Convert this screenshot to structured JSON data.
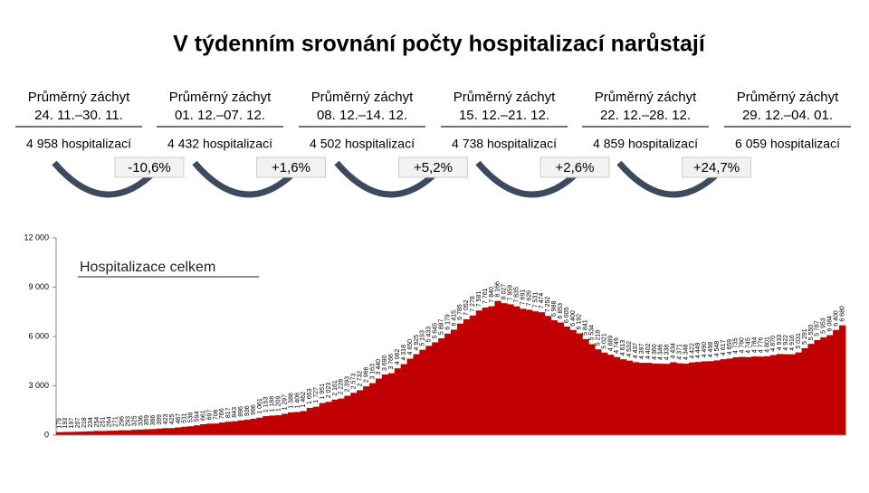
{
  "header": {
    "title": "V týdenním srovnání počty hospitalizací narůstají"
  },
  "periods": [
    {
      "label": "Průměrný záchyt",
      "dates": "24. 11.–30. 11.",
      "hospitalized": "4 958 hospitalizací"
    },
    {
      "label": "Průměrný záchyt",
      "dates": "01. 12.–07. 12.",
      "hospitalized": "4 432 hospitalizací"
    },
    {
      "label": "Průměrný záchyt",
      "dates": "08. 12.–14. 12.",
      "hospitalized": "4 502 hospitalizací"
    },
    {
      "label": "Průměrný záchyt",
      "dates": "15. 12.–21. 12.",
      "hospitalized": "4 738 hospitalizací"
    },
    {
      "label": "Průměrný záchyt",
      "dates": "22. 12.–28. 12.",
      "hospitalized": "4 859 hospitalizací"
    },
    {
      "label": "Průměrný záchyt",
      "dates": "29. 12.–04. 01.",
      "hospitalized": "6 059 hospitalizací"
    }
  ],
  "changes": [
    "-10,6%",
    "+1,6%",
    "+5,2%",
    "+2,6%",
    "+24,7%"
  ],
  "chart_data": {
    "type": "bar",
    "label": "Hospitalizace celkem",
    "color": "#c00000",
    "ylim": [
      0,
      12000
    ],
    "yticks": [
      0,
      {
        "value": 3000,
        "label": "3 000"
      },
      {
        "value": 6000,
        "label": "6 000"
      },
      {
        "value": 9000,
        "label": "9 000"
      },
      {
        "value": 12000,
        "label": "12 000"
      }
    ],
    "categories": [
      null,
      null,
      null,
      null,
      null,
      null,
      null,
      null,
      null,
      null,
      null,
      null,
      null,
      null,
      null,
      null,
      null,
      null,
      null,
      null,
      null,
      null,
      null,
      null,
      null,
      null,
      null,
      null,
      null,
      null,
      null,
      null,
      null,
      null,
      null,
      null,
      null,
      null,
      null,
      null,
      null,
      null,
      null,
      null,
      null,
      null,
      null,
      null,
      null,
      null,
      null,
      null,
      null,
      null,
      null,
      null,
      null,
      null,
      null,
      null,
      null,
      null,
      null,
      null,
      null,
      null,
      null,
      null,
      null,
      null,
      null,
      null,
      null,
      null,
      null,
      null,
      null,
      null,
      null,
      null,
      null,
      null,
      null,
      null,
      null,
      null,
      null,
      null,
      null,
      null,
      null,
      null,
      null,
      null,
      null,
      null,
      null,
      null,
      null,
      null,
      null,
      null,
      null,
      null,
      null,
      null,
      null,
      null,
      null,
      null,
      null,
      null,
      null,
      null,
      null,
      null,
      null,
      null,
      null,
      null,
      null,
      null,
      null,
      null,
      null,
      null
    ],
    "values": [
      179,
      193,
      197,
      207,
      218,
      234,
      254,
      251,
      264,
      271,
      296,
      293,
      325,
      336,
      359,
      366,
      399,
      423,
      425,
      467,
      511,
      536,
      594,
      661,
      697,
      706,
      766,
      817,
      843,
      896,
      936,
      996,
      1061,
      1153,
      1188,
      1209,
      1297,
      1388,
      1406,
      1462,
      1653,
      1727,
      1951,
      2023,
      2161,
      2228,
      2393,
      2573,
      2732,
      2966,
      3163,
      3440,
      3690,
      3766,
      4062,
      4318,
      4650,
      4925,
      5193,
      5433,
      5645,
      5887,
      6179,
      6415,
      6785,
      7052,
      7278,
      7581,
      7761,
      7840,
      8166,
      8027,
      7959,
      7835,
      7691,
      7626,
      7531,
      7474,
      7252,
      6988,
      6853,
      6605,
      6400,
      6192,
      5841,
      5534,
      5218,
      5021,
      4889,
      4749,
      4613,
      4532,
      4437,
      4397,
      4402,
      4360,
      4346,
      4338,
      4434,
      4371,
      4348,
      4422,
      4449,
      4490,
      4498,
      4548,
      4617,
      4659,
      4735,
      4760,
      4745,
      4784,
      4776,
      4801,
      4870,
      4933,
      4922,
      4916,
      5031,
      5291,
      5550,
      5787,
      5953,
      6084,
      6400,
      6680
    ],
    "value_labels": [
      "179",
      "193",
      "197",
      "207",
      "218",
      "234",
      "254",
      "251",
      "264",
      "271",
      "296",
      "293",
      "325",
      "336",
      "359",
      "366",
      "399",
      "423",
      "425",
      "467",
      "511",
      "536",
      "594",
      "661",
      "697",
      "706",
      "766",
      "817",
      "843",
      "896",
      "936",
      "996",
      "1 061",
      "1 153",
      "1 188",
      "1 209",
      "1 297",
      "1 388",
      "1 406",
      "1 462",
      "1 653",
      "1 727",
      "1 951",
      "2 023",
      "2 161",
      "2 228",
      "2 393",
      "2 573",
      "2 732",
      "2 966",
      "3 163",
      "3 440",
      "3 690",
      "3 766",
      "4 062",
      "4 318",
      "4 650",
      "4 925",
      "5 193",
      "5 433",
      "5 645",
      "5 887",
      "6 179",
      "6 415",
      "6 785",
      "7 052",
      "7 278",
      "7 581",
      "7 761",
      "7 840",
      "8 166",
      "8 027",
      "7 959",
      "7 835",
      "7 691",
      "7 626",
      "7 531",
      "7 474",
      "7 252",
      "6 988",
      "6 853",
      "6 605",
      "6 400",
      "6 192",
      "5 841",
      "5 534",
      "5 218",
      "5 021",
      "4 889",
      "4 749",
      "4 613",
      "4 532",
      "4 437",
      "4 397",
      "4 402",
      "4 360",
      "4 346",
      "4 338",
      "4 434",
      "4 371",
      "4 348",
      "4 422",
      "4 449",
      "4 490",
      "4 498",
      "4 548",
      "4 617",
      "4 659",
      "4 735",
      "4 760",
      "4 745",
      "4 784",
      "4 776",
      "4 801",
      "4 870",
      "4 933",
      "4 922",
      "4 916",
      "5 031",
      "5 291",
      "5 550",
      "5 787",
      "5 953",
      "6 084",
      "6 400",
      "6 680"
    ]
  }
}
